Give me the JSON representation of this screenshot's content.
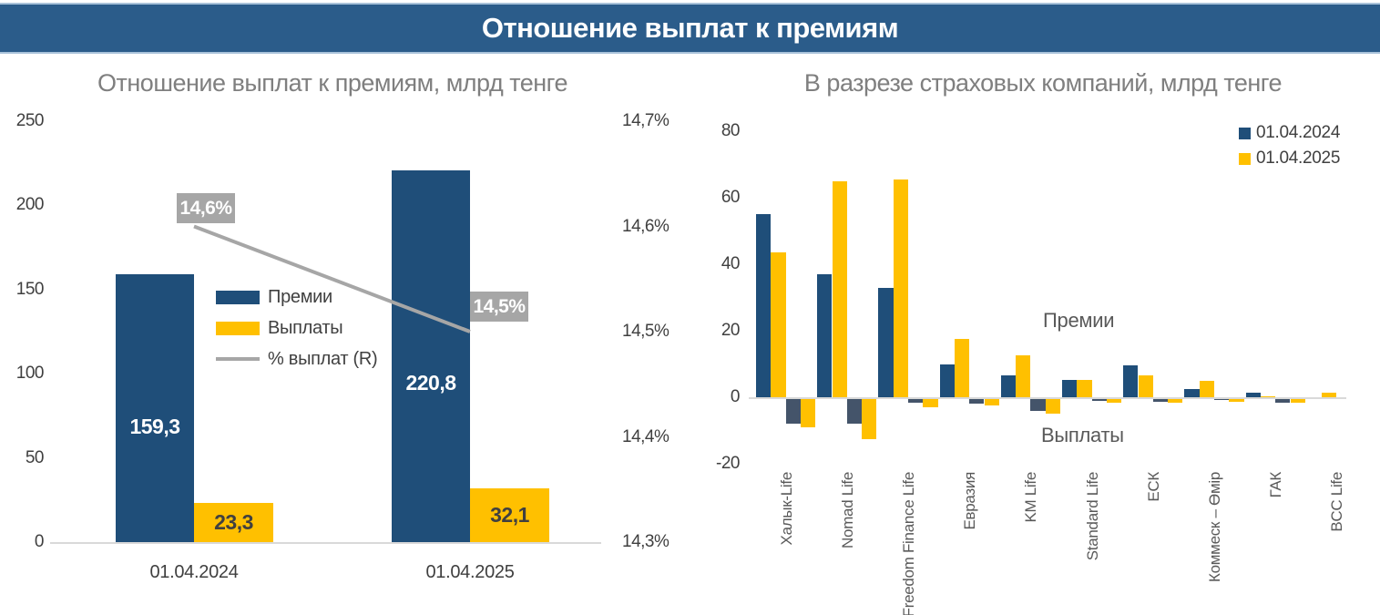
{
  "header": {
    "title": "Отношение выплат к премиям",
    "bg": "#2B5C8A"
  },
  "colors": {
    "navy": "#1F4E79",
    "gold": "#FFC000",
    "slate": "#44546A",
    "gray_line": "#A6A6A6",
    "title_gray": "#7F7F7F",
    "axis_text": "#3F3F3F",
    "baseline": "#D9D9D9",
    "label_on_gold": "#404040",
    "label_on_navy": "#FFFFFF"
  },
  "chart_data": [
    {
      "type": "bar",
      "title": "Отношение выплат к премиям, млрд тенге",
      "categories": [
        "01.04.2024",
        "01.04.2025"
      ],
      "series": [
        {
          "name": "Премии",
          "values": [
            159.3,
            220.8
          ],
          "labels": [
            "159,3",
            "220,8"
          ],
          "color": "#1F4E79",
          "axis": "left"
        },
        {
          "name": "Выплаты",
          "values": [
            23.3,
            32.1
          ],
          "labels": [
            "23,3",
            "32,1"
          ],
          "color": "#FFC000",
          "axis": "left"
        },
        {
          "name": "% выплат (R)",
          "values": [
            14.6,
            14.5
          ],
          "labels": [
            "14,6%",
            "14,5%"
          ],
          "color": "#A6A6A6",
          "axis": "right",
          "line": true
        }
      ],
      "left_axis": {
        "labels": [
          "0",
          "50",
          "100",
          "150",
          "200",
          "250"
        ],
        "values": [
          0,
          50,
          100,
          150,
          200,
          250
        ],
        "min": 0,
        "max": 250
      },
      "right_axis": {
        "labels": [
          "14,3%",
          "14,4%",
          "14,5%",
          "14,6%",
          "14,7%"
        ],
        "values": [
          14.3,
          14.4,
          14.5,
          14.6,
          14.7
        ],
        "min": 14.3,
        "max": 14.7
      },
      "legend": [
        {
          "label": "Премии",
          "color": "#1F4E79",
          "type": "bar"
        },
        {
          "label": "Выплаты",
          "color": "#FFC000",
          "type": "bar"
        },
        {
          "label": "% выплат (R)",
          "color": "#A6A6A6",
          "type": "line"
        }
      ],
      "grid": false,
      "legend_position": "inside-middle"
    },
    {
      "type": "bar",
      "title": "В разрезе страховых компаний, млрд тенге",
      "categories": [
        "Халык-Life",
        "Nomad Life",
        "Freedom Finance Life",
        "Евразия",
        "KM Life",
        "Standard Life",
        "ЕСК",
        "Коммеск – Өмір",
        "ГАК",
        "BCC Life"
      ],
      "series": [
        {
          "name": "Премии 01.04.2024",
          "values": [
            55,
            37,
            33,
            10,
            6.5,
            5.2,
            9.5,
            2.5,
            1.3,
            0.2
          ],
          "color": "#1F4E79"
        },
        {
          "name": "Премии 01.04.2025",
          "values": [
            43.5,
            65,
            65.5,
            17.5,
            12.5,
            5.2,
            6.5,
            4.8,
            0.3,
            1.3
          ],
          "color": "#FFC000"
        },
        {
          "name": "Выплаты 01.04.2024",
          "values": [
            -7.5,
            -7.5,
            -1,
            -1.5,
            -3.6,
            -0.6,
            -0.8,
            -0.4,
            -1,
            -0.2
          ],
          "color": "#44546A"
        },
        {
          "name": "Выплаты 01.04.2025",
          "values": [
            -8.5,
            -12,
            -2.5,
            -2,
            -4.4,
            -1.2,
            -1.2,
            -0.8,
            -1,
            -0.2
          ],
          "color": "#FFC000"
        }
      ],
      "y_axis": {
        "labels": [
          "80",
          "60",
          "40",
          "20",
          "0",
          "-20"
        ],
        "values": [
          80,
          60,
          40,
          20,
          0,
          -20
        ]
      },
      "ylim": [
        -20,
        80
      ],
      "legend": [
        {
          "label": "01.04.2024",
          "color": "#1F4E79"
        },
        {
          "label": "01.04.2025",
          "color": "#FFC000"
        }
      ],
      "legend_position": "top-right",
      "annotations": [
        {
          "text": "Премии"
        },
        {
          "text": "Выплаты"
        }
      ],
      "grid": false
    }
  ]
}
